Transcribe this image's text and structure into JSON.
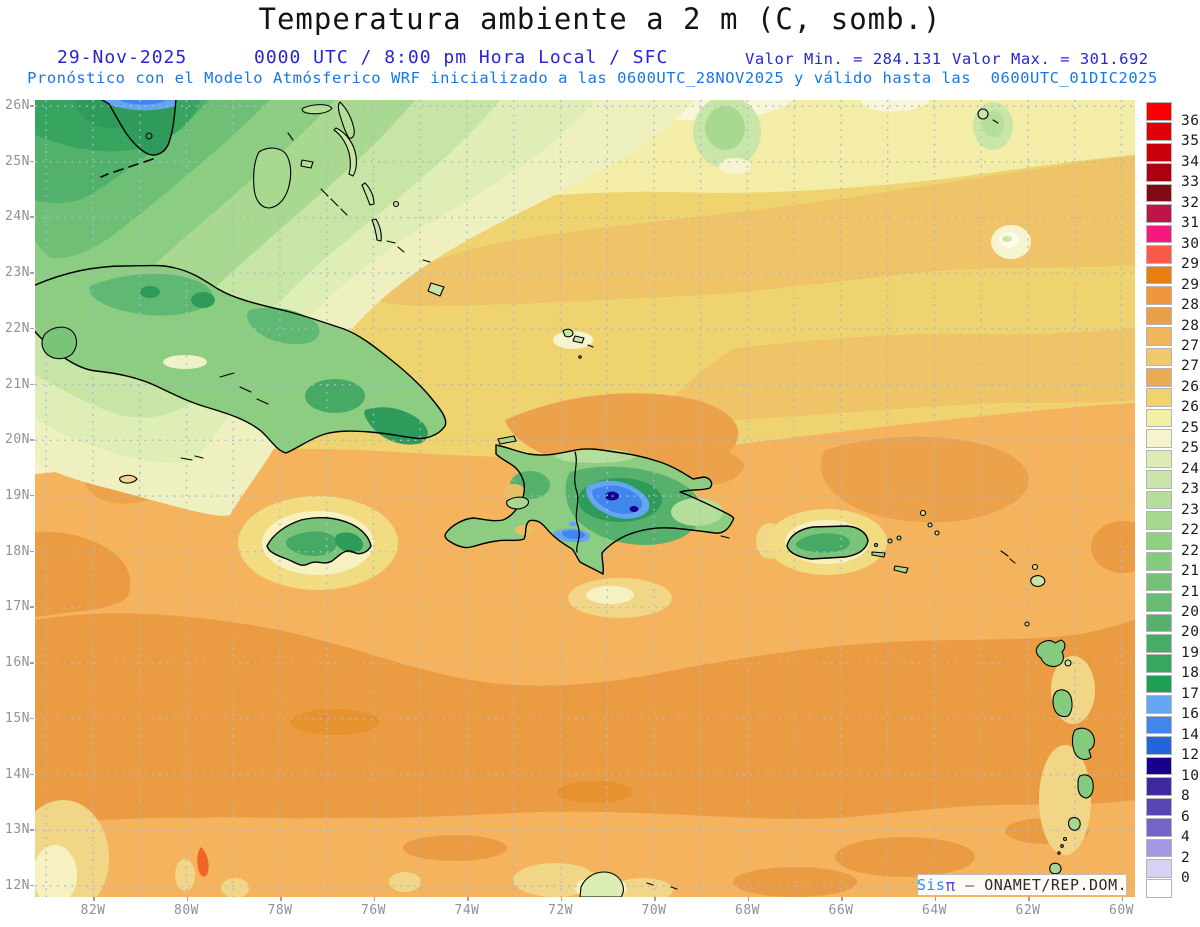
{
  "title": "Temperatura ambiente a 2 m (C, somb.)",
  "header": {
    "date": "29-Nov-2025",
    "time_line": "0000 UTC / 8:00 pm Hora Local / SFC",
    "valor_min": "Valor Min. = 284.131",
    "valor_max": "Valor Max. = 301.692",
    "forecast_line": "Pronóstico con el Modelo Atmósferico WRF inicializado a las 0600UTC_28NOV2025 y válido hasta las  0600UTC_01DIC2025"
  },
  "axes": {
    "lat_labels": [
      "26N",
      "25N",
      "24N",
      "23N",
      "22N",
      "21N",
      "20N",
      "19N",
      "18N",
      "17N",
      "16N",
      "15N",
      "14N",
      "13N",
      "12N"
    ],
    "lon_labels": [
      "82W",
      "80W",
      "78W",
      "76W",
      "74W",
      "72W",
      "70W",
      "68W",
      "66W",
      "64W",
      "62W",
      "60W"
    ]
  },
  "colorbar": {
    "labels": [
      "36",
      "35",
      "34",
      "33",
      "32",
      "31.5",
      "30.7",
      "29.7",
      "29",
      "28.5",
      "28",
      "27.5",
      "27",
      "26.5",
      "26",
      "25.5",
      "25",
      "24",
      "23.5",
      "23",
      "22.5",
      "22",
      "21.5",
      "21",
      "20.5",
      "20",
      "19",
      "18",
      "17",
      "16",
      "14",
      "12",
      "10",
      "8",
      "6",
      "4",
      "2",
      "0"
    ],
    "colors": [
      "#FB0000",
      "#E10008",
      "#C9000C",
      "#AB0010",
      "#800A16",
      "#C01448",
      "#F5187E",
      "#F85A46",
      "#E87E0E",
      "#F0963C",
      "#E8A048",
      "#F0B45A",
      "#F0C86E",
      "#E8AC54",
      "#EFD36B",
      "#F4EFA6",
      "#F6F4CF",
      "#DCEDB4",
      "#C9E6A8",
      "#B5DE9A",
      "#A3D88E",
      "#8FD083",
      "#85CB7E",
      "#75C178",
      "#68BC72",
      "#55B16C",
      "#46AC66",
      "#37A660",
      "#1F9E56",
      "#66A5F2",
      "#4187EB",
      "#2366DC",
      "#16008C",
      "#3F28A0",
      "#5546B4",
      "#7364C8",
      "#A596E6",
      "#D7D2F5",
      "#FFFFFF"
    ]
  },
  "watermark": {
    "brand": "Sis",
    "pi": "π",
    "dash": " – ",
    "agency": "ONAMET/REP.DOM."
  },
  "chart_data": {
    "type": "heatmap",
    "title": "Temperatura ambiente a 2 m (C, somb.)",
    "valid": "29-Nov-2025 0000 UTC / 8:00 pm Hora Local / SFC",
    "value_min": 284.131,
    "value_max": 301.692,
    "lon_range_deg_w": [
      83.2,
      59.7
    ],
    "lat_range_deg_n": [
      11.8,
      26.1
    ],
    "colorbar_levels_c": [
      0,
      2,
      4,
      6,
      8,
      10,
      12,
      14,
      16,
      17,
      18,
      19,
      20,
      20.5,
      21,
      21.5,
      22,
      22.5,
      23,
      23.5,
      24,
      25,
      25.5,
      26,
      26.5,
      27,
      27.5,
      28,
      28.5,
      29,
      29.7,
      30.7,
      31.5,
      32,
      33,
      34,
      35,
      36
    ],
    "notes": "Caribbean 2 m air temperature: warm orange sea (27.5-29 C) south, cooler greens (20-25 C) NW behind cold front over Florida/Cuba/Bahamas, green islands with cold blue mountain cores (10-16 C) over Hispaniola interior"
  },
  "palette": {
    "ocean_warm_light": "#F4B35C",
    "ocean_warm_dark": "#EB9C43",
    "band_gold": "#EFD36E",
    "band_tan": "#EFC368",
    "band_pale_yellow": "#F3EDA8",
    "land_green": "#8CCD82",
    "mountain_blue": "#4187EB",
    "mountain_navy": "#16008C",
    "grid_line": "#A9B9CE",
    "axis_text": "#8D9298",
    "header_blue": "#2626D2",
    "forecast_blue": "#1877E8"
  }
}
